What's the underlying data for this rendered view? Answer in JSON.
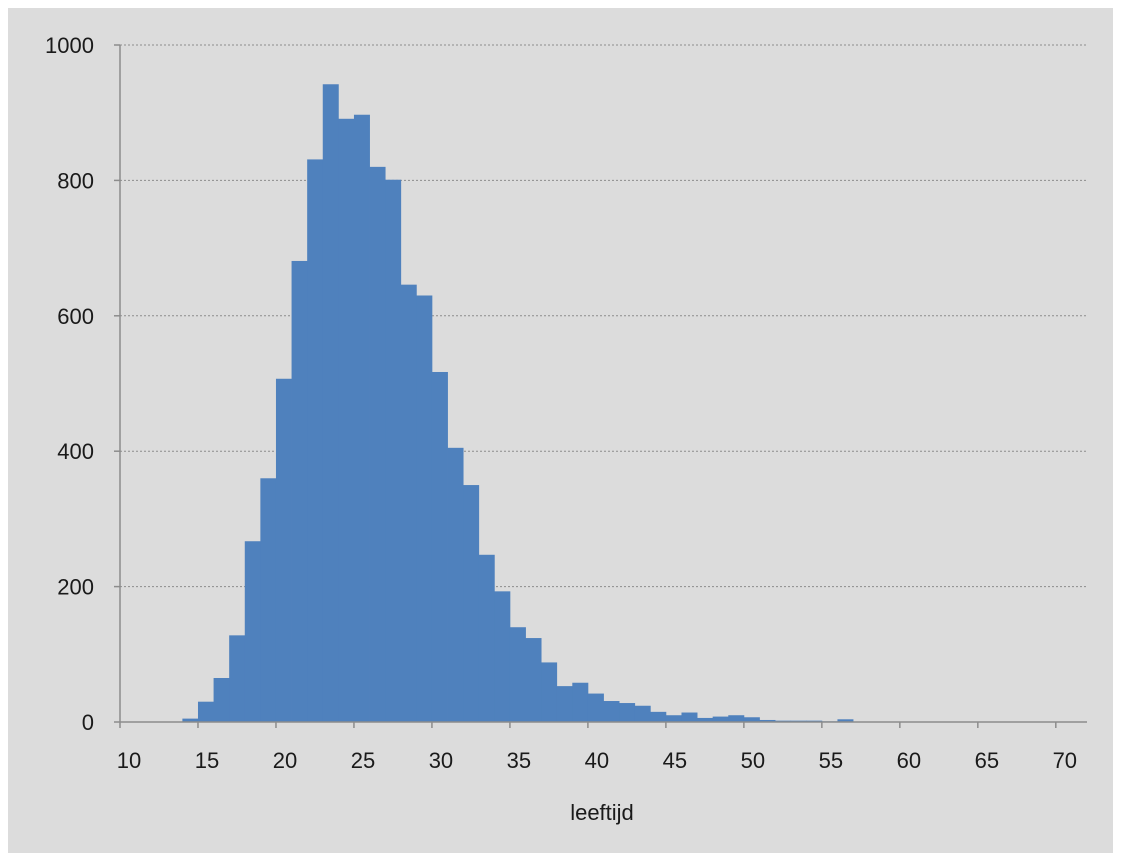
{
  "chart_data": {
    "type": "bar",
    "title": "",
    "xlabel": "leeftijd",
    "ylabel": "",
    "xlim": [
      10,
      72
    ],
    "ylim": [
      0,
      1000
    ],
    "x_ticks": [
      10,
      15,
      20,
      25,
      30,
      35,
      40,
      45,
      50,
      55,
      60,
      65,
      70
    ],
    "y_ticks": [
      0,
      200,
      400,
      600,
      800,
      1000
    ],
    "grid": true,
    "legend": "none",
    "bin_width": 1,
    "x": [
      14,
      15,
      16,
      17,
      18,
      19,
      20,
      21,
      22,
      23,
      24,
      25,
      26,
      27,
      28,
      29,
      30,
      31,
      32,
      33,
      34,
      35,
      36,
      37,
      38,
      39,
      40,
      41,
      42,
      43,
      44,
      45,
      46,
      47,
      48,
      49,
      50,
      51,
      52,
      53,
      54,
      55,
      56
    ],
    "values": [
      5,
      30,
      65,
      128,
      267,
      360,
      507,
      681,
      831,
      942,
      891,
      897,
      820,
      801,
      646,
      630,
      517,
      405,
      350,
      247,
      193,
      140,
      124,
      88,
      53,
      58,
      42,
      31,
      28,
      24,
      15,
      10,
      14,
      6,
      8,
      10,
      7,
      3,
      2,
      2,
      2,
      1,
      4
    ],
    "colors": {
      "bar": "#4f81bd",
      "background": "#dcdcdc",
      "gridline": "#8c8c8c",
      "axis": "#8c8c8c"
    }
  }
}
